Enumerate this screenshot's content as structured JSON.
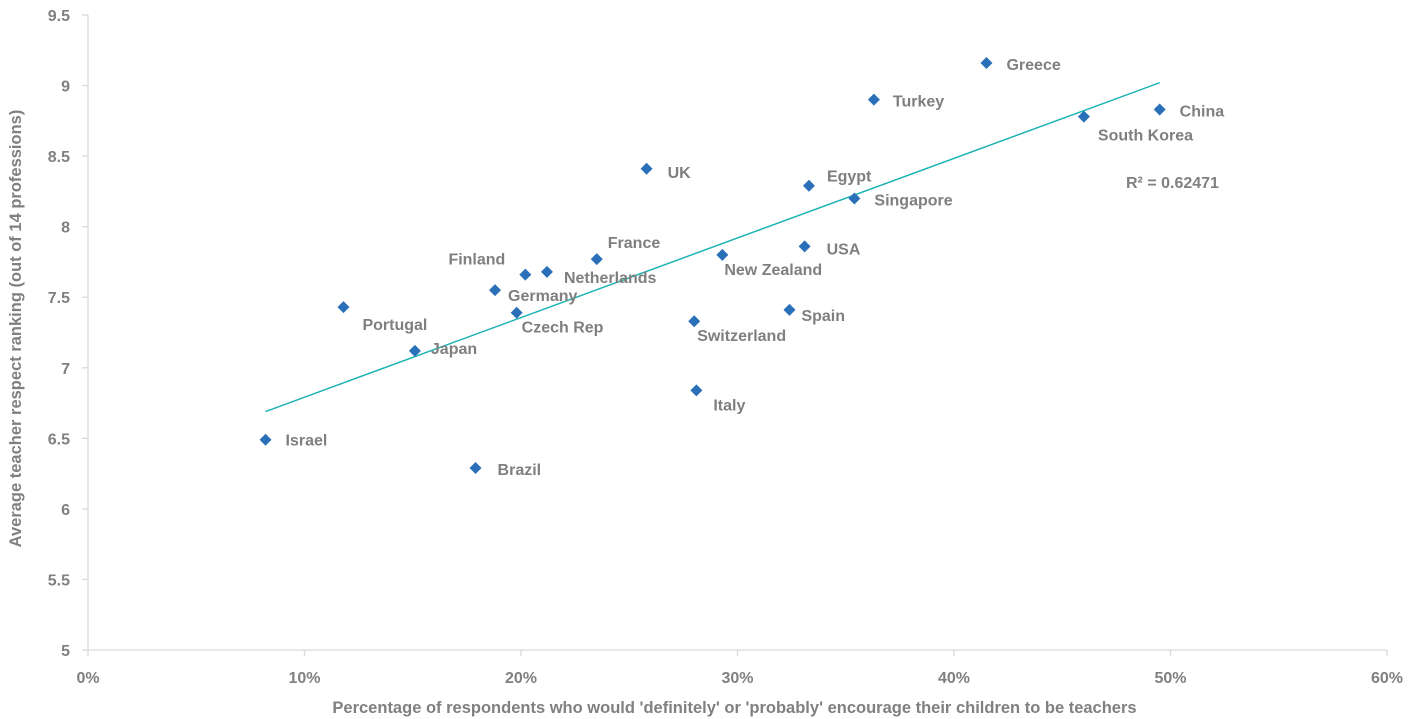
{
  "chart_data": {
    "type": "scatter",
    "xlabel": "Percentage of respondents who would 'definitely' or 'probably' encourage their children to be teachers",
    "ylabel": "Average teacher respect ranking (out of 14 professions)",
    "xlim": [
      0,
      60
    ],
    "ylim": [
      5,
      9.5
    ],
    "x_ticks": [
      0,
      10,
      20,
      30,
      40,
      50,
      60
    ],
    "x_tick_labels": [
      "0%",
      "10%",
      "20%",
      "30%",
      "40%",
      "50%",
      "60%"
    ],
    "y_ticks": [
      5,
      5.5,
      6,
      6.5,
      7,
      7.5,
      8,
      8.5,
      9,
      9.5
    ],
    "y_tick_labels": [
      "5",
      "5.5",
      "6",
      "6.5",
      "7",
      "7.5",
      "8",
      "8.5",
      "9",
      "9.5"
    ],
    "grid": false,
    "marker": "diamond",
    "marker_color": "#2a70b9",
    "trendline_color": "#1fb3b3",
    "trendline": {
      "x": [
        8.2,
        49.5
      ],
      "y": [
        6.69,
        9.02
      ]
    },
    "r_squared_label": "R² = 0.62471",
    "points": [
      {
        "label": "Israel",
        "x": 8.2,
        "y": 6.49
      },
      {
        "label": "Portugal",
        "x": 11.8,
        "y": 7.43
      },
      {
        "label": "Japan",
        "x": 15.1,
        "y": 7.12
      },
      {
        "label": "Brazil",
        "x": 17.9,
        "y": 6.29
      },
      {
        "label": "Germany",
        "x": 18.8,
        "y": 7.55
      },
      {
        "label": "Czech Rep",
        "x": 19.8,
        "y": 7.39
      },
      {
        "label": "Finland",
        "x": 20.2,
        "y": 7.66
      },
      {
        "label": "Netherlands",
        "x": 21.2,
        "y": 7.68
      },
      {
        "label": "France",
        "x": 23.5,
        "y": 7.77
      },
      {
        "label": "UK",
        "x": 25.8,
        "y": 8.41
      },
      {
        "label": "Switzerland",
        "x": 28.0,
        "y": 7.33
      },
      {
        "label": "Italy",
        "x": 28.1,
        "y": 6.84
      },
      {
        "label": "New Zealand",
        "x": 29.3,
        "y": 7.8
      },
      {
        "label": "Spain",
        "x": 32.4,
        "y": 7.41
      },
      {
        "label": "USA",
        "x": 33.1,
        "y": 7.86
      },
      {
        "label": "Egypt",
        "x": 33.3,
        "y": 8.29
      },
      {
        "label": "Singapore",
        "x": 35.4,
        "y": 8.2
      },
      {
        "label": "Turkey",
        "x": 36.3,
        "y": 8.9
      },
      {
        "label": "Greece",
        "x": 41.5,
        "y": 9.16
      },
      {
        "label": "South Korea",
        "x": 46.0,
        "y": 8.78
      },
      {
        "label": "China",
        "x": 49.5,
        "y": 8.83
      }
    ]
  }
}
